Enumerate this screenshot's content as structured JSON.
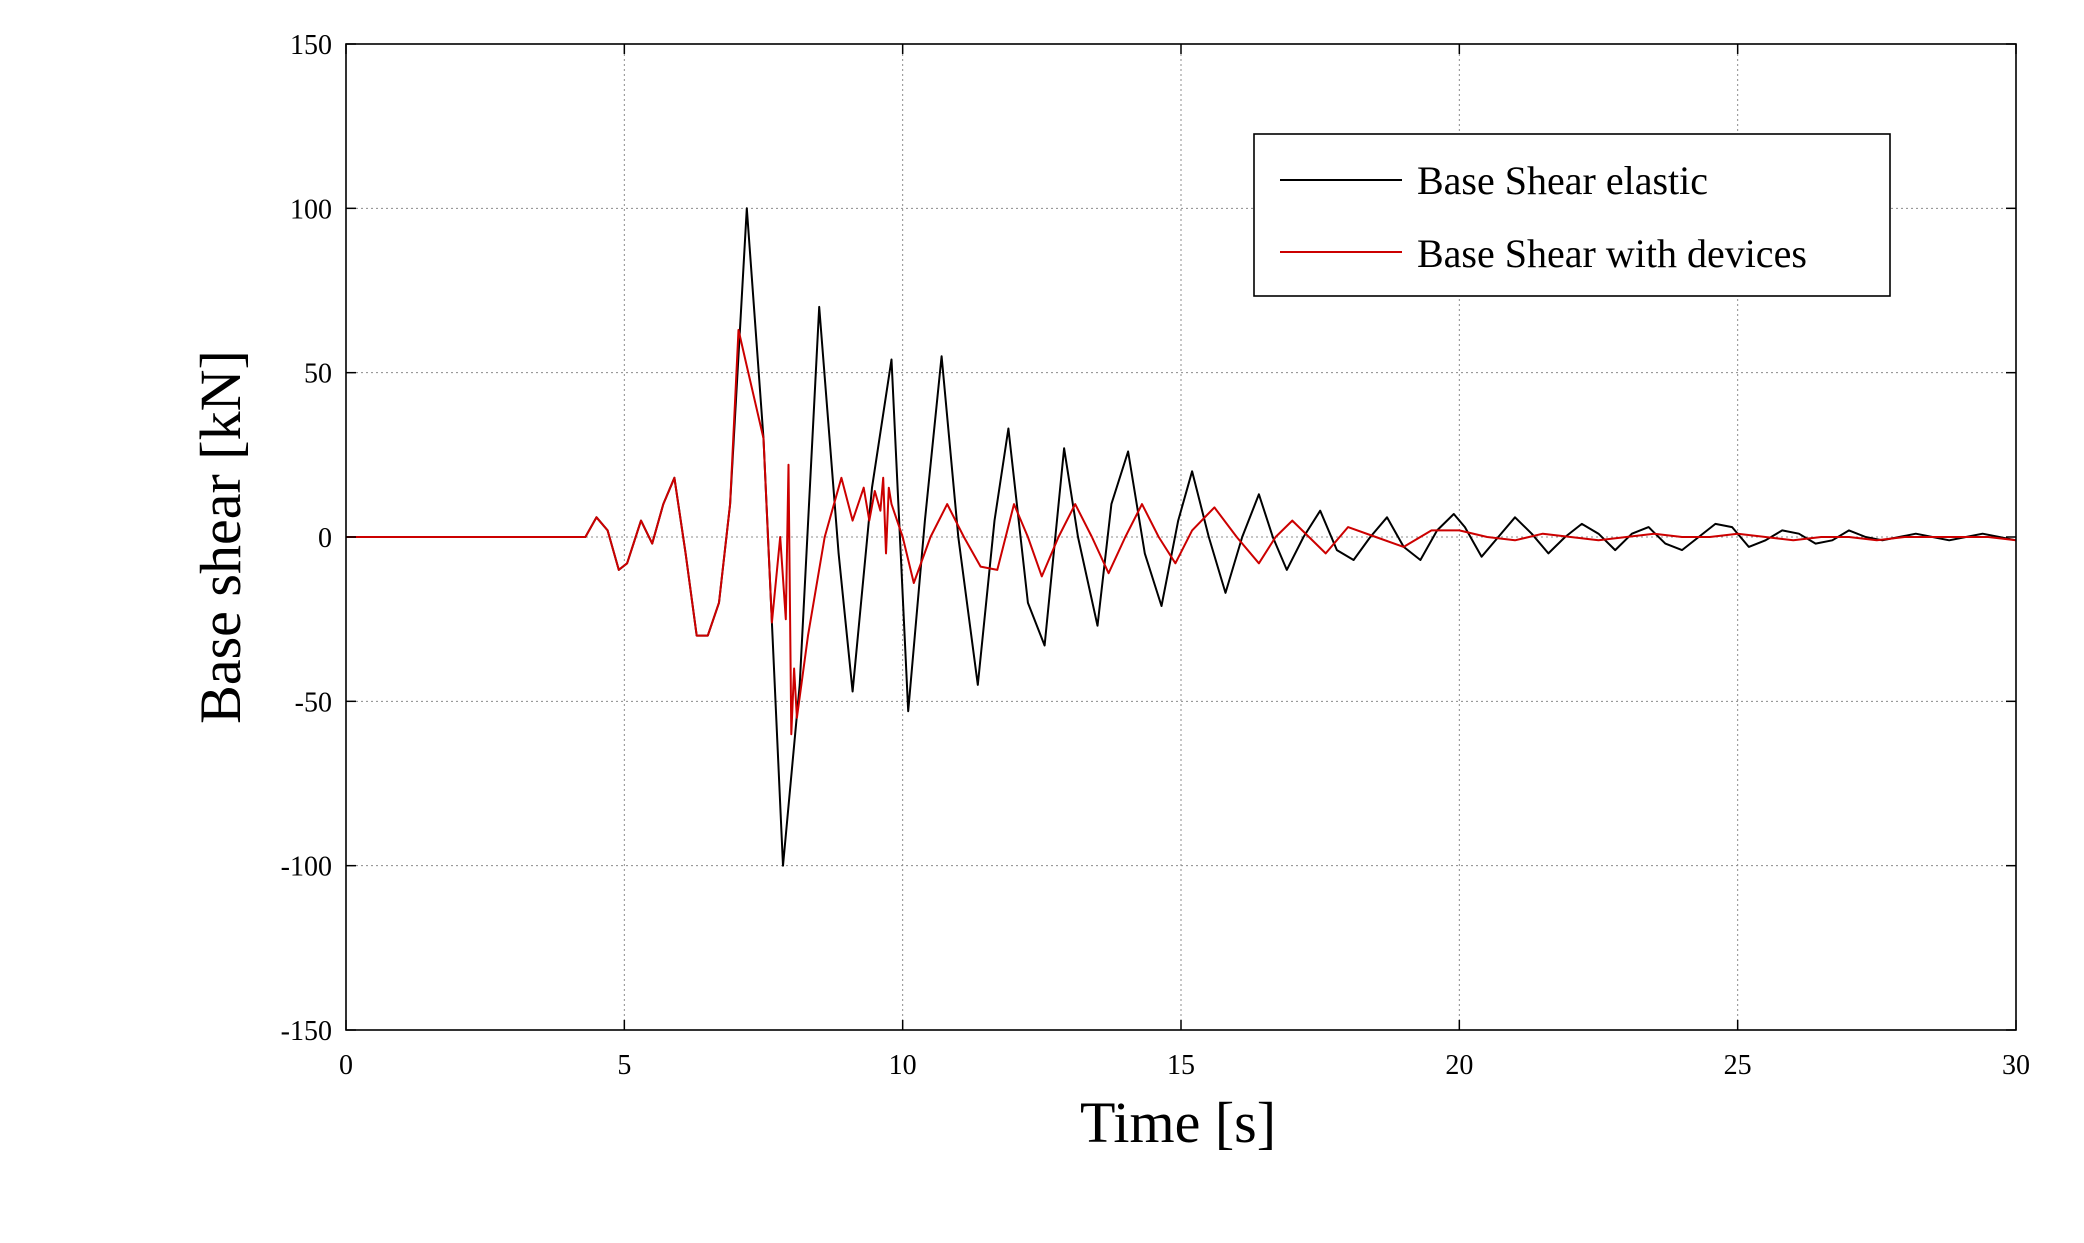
{
  "chart_data": {
    "type": "line",
    "title": "",
    "xlabel": "Time [s]",
    "ylabel": "Base shear [kN]",
    "xlim": [
      0,
      30
    ],
    "ylim": [
      -150,
      150
    ],
    "xticks": [
      "0",
      "5",
      "10",
      "15",
      "20",
      "25",
      "30"
    ],
    "yticks": [
      "-150",
      "-100",
      "-50",
      "0",
      "50",
      "100",
      "150"
    ],
    "grid": true,
    "legend_position": "top-right",
    "series": [
      {
        "name": "Base Shear elastic",
        "color": "#000000",
        "x": [
          0,
          1,
          2,
          3,
          4.3,
          4.5,
          4.7,
          4.9,
          5.05,
          5.3,
          5.5,
          5.7,
          5.9,
          6.1,
          6.3,
          6.5,
          6.7,
          6.9,
          7.2,
          7.5,
          7.85,
          8.15,
          8.5,
          8.85,
          9.1,
          9.45,
          9.8,
          10.1,
          10.4,
          10.7,
          11.0,
          11.35,
          11.65,
          11.9,
          12.25,
          12.55,
          12.9,
          13.15,
          13.5,
          13.75,
          14.05,
          14.35,
          14.65,
          14.95,
          15.2,
          15.5,
          15.8,
          16.1,
          16.4,
          16.65,
          16.9,
          17.2,
          17.5,
          17.8,
          18.1,
          18.4,
          18.7,
          19.0,
          19.3,
          19.6,
          19.9,
          20.1,
          20.4,
          20.7,
          21.0,
          21.3,
          21.6,
          21.9,
          22.2,
          22.5,
          22.8,
          23.1,
          23.4,
          23.7,
          24.0,
          24.3,
          24.6,
          24.9,
          25.2,
          25.5,
          25.8,
          26.1,
          26.4,
          26.7,
          27.0,
          27.3,
          27.6,
          27.9,
          28.2,
          28.5,
          28.8,
          29.1,
          29.4,
          29.7,
          30.0
        ],
        "y": [
          0,
          0,
          0,
          0,
          0,
          6,
          2,
          -10,
          -8,
          5,
          -2,
          10,
          18,
          -5,
          -30,
          -30,
          -20,
          10,
          100,
          30,
          -100,
          -45,
          70,
          -5,
          -47,
          15,
          54,
          -53,
          5,
          55,
          0,
          -45,
          5,
          33,
          -20,
          -33,
          27,
          0,
          -27,
          10,
          26,
          -5,
          -21,
          5,
          20,
          0,
          -17,
          0,
          13,
          0,
          -10,
          0,
          8,
          -4,
          -7,
          0,
          6,
          -3,
          -7,
          2,
          7,
          3,
          -6,
          0,
          6,
          1,
          -5,
          0,
          4,
          1,
          -4,
          1,
          3,
          -2,
          -4,
          0,
          4,
          3,
          -3,
          -1,
          2,
          1,
          -2,
          -1,
          2,
          0,
          -1,
          0,
          1,
          0,
          -1,
          0,
          1,
          0,
          -1
        ]
      },
      {
        "name": "Base Shear with devices",
        "color": "#cc0000",
        "x": [
          0,
          1,
          2,
          3,
          4.3,
          4.5,
          4.7,
          4.9,
          5.05,
          5.3,
          5.5,
          5.7,
          5.9,
          6.1,
          6.3,
          6.5,
          6.7,
          6.9,
          7.05,
          7.2,
          7.5,
          7.65,
          7.8,
          7.9,
          7.95,
          8.0,
          8.05,
          8.1,
          8.3,
          8.6,
          8.9,
          9.1,
          9.3,
          9.4,
          9.5,
          9.6,
          9.65,
          9.7,
          9.75,
          9.8,
          10.0,
          10.2,
          10.5,
          10.8,
          11.1,
          11.4,
          11.7,
          12.0,
          12.25,
          12.5,
          12.8,
          13.1,
          13.4,
          13.7,
          14.0,
          14.3,
          14.6,
          14.9,
          15.2,
          15.6,
          16.0,
          16.4,
          16.7,
          17.0,
          17.3,
          17.6,
          18.0,
          18.5,
          19.0,
          19.5,
          20.0,
          20.5,
          21.0,
          21.5,
          22.0,
          22.5,
          23.0,
          23.5,
          24.0,
          24.5,
          25.0,
          25.5,
          26.0,
          26.5,
          27.0,
          27.5,
          28.0,
          28.5,
          29.0,
          29.5,
          30.0
        ],
        "y": [
          0,
          0,
          0,
          0,
          0,
          6,
          2,
          -10,
          -8,
          5,
          -2,
          10,
          18,
          -5,
          -30,
          -30,
          -20,
          10,
          63,
          52,
          30,
          -26,
          0,
          -25,
          22,
          -60,
          -40,
          -55,
          -30,
          0,
          18,
          5,
          15,
          5,
          14,
          8,
          18,
          -5,
          15,
          10,
          0,
          -14,
          0,
          10,
          0,
          -9,
          -10,
          10,
          0,
          -12,
          0,
          10,
          0,
          -11,
          0,
          10,
          0,
          -8,
          2,
          9,
          0,
          -8,
          0,
          5,
          0,
          -5,
          3,
          0,
          -3,
          2,
          2,
          0,
          -1,
          1,
          0,
          -1,
          0,
          1,
          0,
          0,
          1,
          0,
          -1,
          0,
          0,
          -1,
          0,
          0,
          0,
          0,
          -1
        ]
      }
    ]
  }
}
